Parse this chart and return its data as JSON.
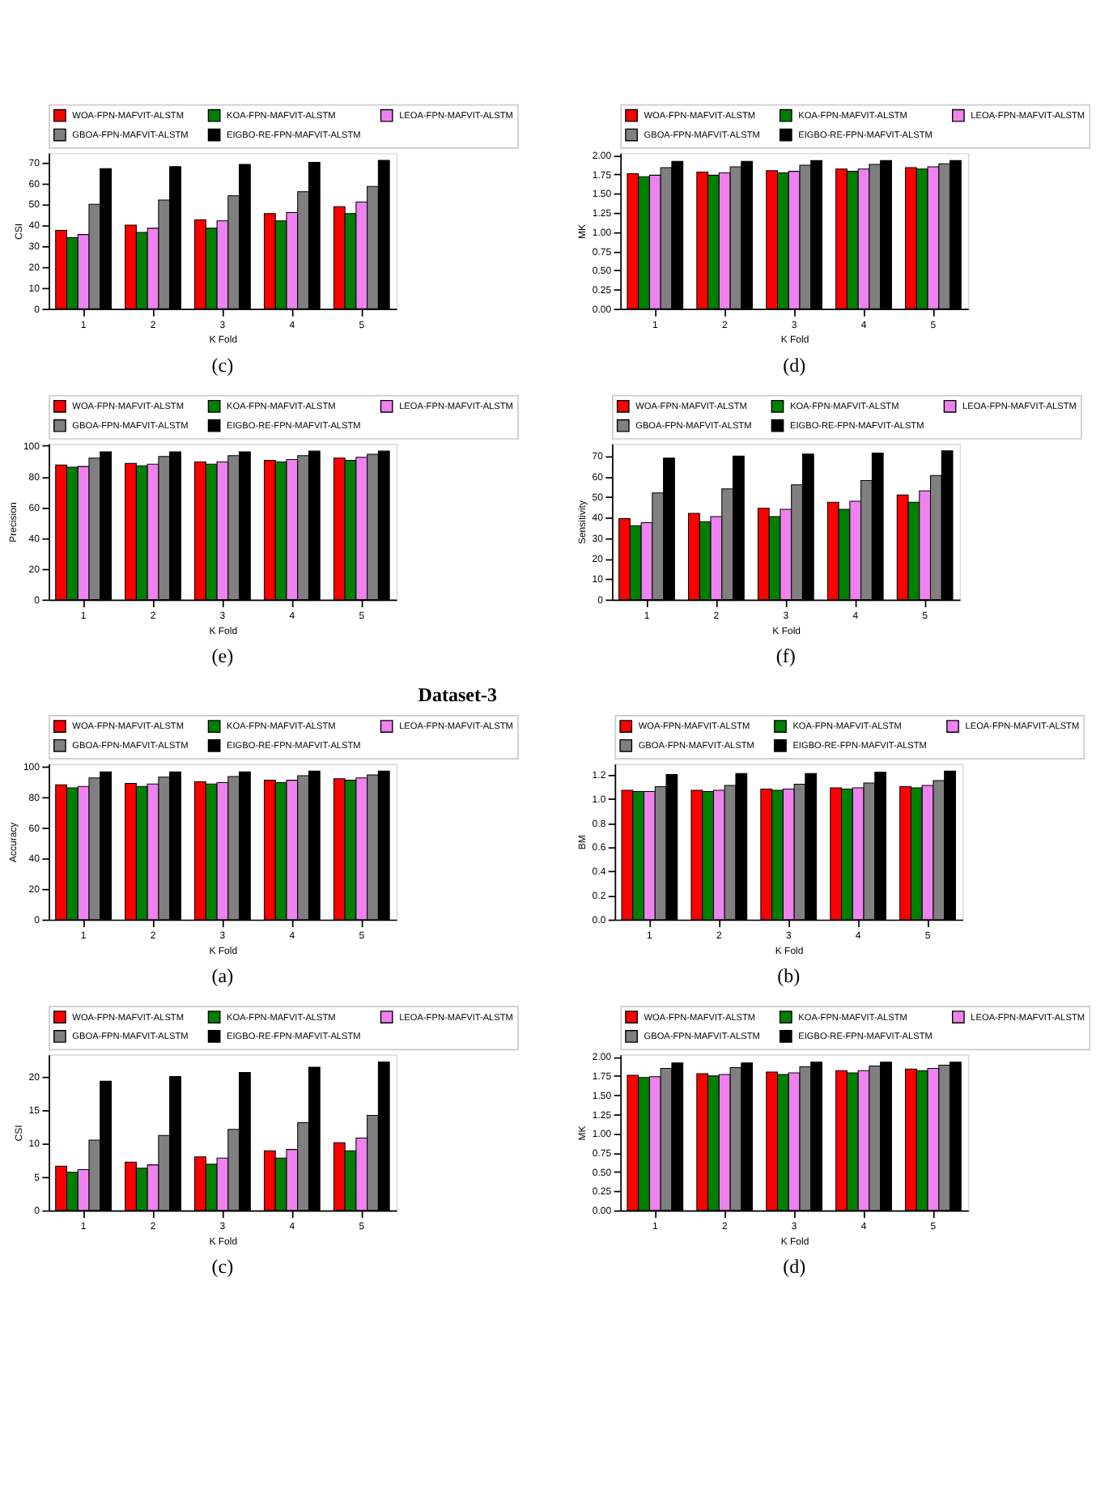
{
  "chart_data": [
    {
      "type": "bar",
      "ylabel": "CSI",
      "xlabel": "K Fold",
      "categories": [
        "1",
        "2",
        "3",
        "4",
        "5"
      ],
      "ylim": [
        0,
        74.5
      ],
      "yticks": [
        0,
        10,
        20,
        30,
        40,
        50,
        60,
        70
      ],
      "grid": false,
      "legend": "top",
      "annotations": [
        "(c)"
      ],
      "series": [
        {
          "name": "WOA-FPN-MAFVIT-ALSTM",
          "color": "#ff0000",
          "values": [
            37.5,
            40,
            42.5,
            45.5,
            48.8
          ]
        },
        {
          "name": "KOA-FPN-MAFVIT-ALSTM",
          "color": "#008000",
          "values": [
            34,
            36.5,
            38.5,
            42,
            45.5
          ]
        },
        {
          "name": "LEOA-FPN-MAFVIT-ALSTM",
          "color": "#ee82ee",
          "values": [
            35.5,
            38.5,
            42,
            46,
            51
          ]
        },
        {
          "name": "GBOA-FPN-MAFVIT-ALSTM",
          "color": "#808080",
          "values": [
            50,
            52,
            54,
            56,
            58.5
          ]
        },
        {
          "name": "EIGBO-RE-FPN-MAFVIT-ALSTM",
          "color": "#000000",
          "values": [
            67,
            68,
            69,
            70,
            71
          ]
        }
      ]
    },
    {
      "type": "bar",
      "ylabel": "MK",
      "xlabel": "K Fold",
      "categories": [
        "1",
        "2",
        "3",
        "4",
        "5"
      ],
      "ylim": [
        0,
        2.03
      ],
      "yticks": [
        {
          "value": 0,
          "label": "0.00"
        },
        {
          "value": 0.25,
          "label": "0.25"
        },
        {
          "value": 0.5,
          "label": "0.50"
        },
        {
          "value": 0.75,
          "label": "0.75"
        },
        {
          "value": 1,
          "label": "1.00"
        },
        {
          "value": 1.25,
          "label": "1.25"
        },
        {
          "value": 1.5,
          "label": "1.50"
        },
        {
          "value": 1.75,
          "label": "1.75"
        },
        {
          "value": 2,
          "label": "2.00"
        }
      ],
      "grid": false,
      "legend": "top",
      "annotations": [
        "(d)"
      ],
      "series": [
        {
          "name": "WOA-FPN-MAFVIT-ALSTM",
          "color": "#ff0000",
          "values": [
            1.76,
            1.78,
            1.8,
            1.82,
            1.84
          ]
        },
        {
          "name": "KOA-FPN-MAFVIT-ALSTM",
          "color": "#008000",
          "values": [
            1.72,
            1.74,
            1.77,
            1.79,
            1.82
          ]
        },
        {
          "name": "LEOA-FPN-MAFVIT-ALSTM",
          "color": "#ee82ee",
          "values": [
            1.74,
            1.77,
            1.79,
            1.82,
            1.85
          ]
        },
        {
          "name": "GBOA-FPN-MAFVIT-ALSTM",
          "color": "#808080",
          "values": [
            1.84,
            1.85,
            1.87,
            1.88,
            1.89
          ]
        },
        {
          "name": "EIGBO-RE-FPN-MAFVIT-ALSTM",
          "color": "#000000",
          "values": [
            1.92,
            1.92,
            1.93,
            1.93,
            1.93
          ]
        }
      ]
    },
    {
      "type": "bar",
      "ylabel": "Precision",
      "xlabel": "K Fold",
      "categories": [
        "1",
        "2",
        "3",
        "4",
        "5"
      ],
      "ylim": [
        0,
        101.3
      ],
      "yticks": [
        0,
        20,
        40,
        60,
        80,
        100
      ],
      "grid": false,
      "legend": "top",
      "annotations": [
        "(e)"
      ],
      "series": [
        {
          "name": "WOA-FPN-MAFVIT-ALSTM",
          "color": "#ff0000",
          "values": [
            87.5,
            88.5,
            89.5,
            90.5,
            92
          ]
        },
        {
          "name": "KOA-FPN-MAFVIT-ALSTM",
          "color": "#008000",
          "values": [
            86,
            87,
            88,
            89.5,
            90.5
          ]
        },
        {
          "name": "LEOA-FPN-MAFVIT-ALSTM",
          "color": "#ee82ee",
          "values": [
            86.5,
            88,
            89.5,
            91,
            92.5
          ]
        },
        {
          "name": "GBOA-FPN-MAFVIT-ALSTM",
          "color": "#808080",
          "values": [
            92,
            93,
            93.5,
            93.5,
            94.5
          ]
        },
        {
          "name": "EIGBO-RE-FPN-MAFVIT-ALSTM",
          "color": "#000000",
          "values": [
            96,
            96,
            96,
            96.5,
            96.5
          ]
        }
      ]
    },
    {
      "type": "bar",
      "ylabel": "Sensitivity",
      "xlabel": "K Fold",
      "categories": [
        "1",
        "2",
        "3",
        "4",
        "5"
      ],
      "ylim": [
        0,
        76
      ],
      "yticks": [
        0,
        10,
        20,
        30,
        40,
        50,
        60,
        70
      ],
      "grid": false,
      "legend": "top",
      "annotations": [
        "(f)"
      ],
      "series": [
        {
          "name": "WOA-FPN-MAFVIT-ALSTM",
          "color": "#ff0000",
          "values": [
            39.5,
            42,
            44.5,
            47.5,
            51
          ]
        },
        {
          "name": "KOA-FPN-MAFVIT-ALSTM",
          "color": "#008000",
          "values": [
            36,
            38,
            40.5,
            44,
            47.5
          ]
        },
        {
          "name": "LEOA-FPN-MAFVIT-ALSTM",
          "color": "#ee82ee",
          "values": [
            37.5,
            40.5,
            44,
            48,
            53
          ]
        },
        {
          "name": "GBOA-FPN-MAFVIT-ALSTM",
          "color": "#808080",
          "values": [
            52,
            54,
            56,
            58,
            60.5
          ]
        },
        {
          "name": "EIGBO-RE-FPN-MAFVIT-ALSTM",
          "color": "#000000",
          "values": [
            69,
            70,
            71,
            71.5,
            72.5
          ]
        }
      ]
    },
    {
      "type": "bar",
      "ylabel": "Accuracy",
      "xlabel": "K Fold",
      "categories": [
        "1",
        "2",
        "3",
        "4",
        "5"
      ],
      "ylim": [
        0,
        101.8
      ],
      "yticks": [
        0,
        20,
        40,
        60,
        80,
        100
      ],
      "grid": false,
      "legend": "top",
      "annotations": [
        "Dataset-3",
        "(a)"
      ],
      "series": [
        {
          "name": "WOA-FPN-MAFVIT-ALSTM",
          "color": "#ff0000",
          "values": [
            88,
            89,
            90,
            91,
            92
          ]
        },
        {
          "name": "KOA-FPN-MAFVIT-ALSTM",
          "color": "#008000",
          "values": [
            86,
            87,
            88.5,
            89.5,
            91
          ]
        },
        {
          "name": "LEOA-FPN-MAFVIT-ALSTM",
          "color": "#ee82ee",
          "values": [
            87,
            88.5,
            89.5,
            91,
            92.5
          ]
        },
        {
          "name": "GBOA-FPN-MAFVIT-ALSTM",
          "color": "#808080",
          "values": [
            92.5,
            93,
            93.5,
            94,
            94.5
          ]
        },
        {
          "name": "EIGBO-RE-FPN-MAFVIT-ALSTM",
          "color": "#000000",
          "values": [
            96.5,
            96.5,
            96.5,
            97,
            97
          ]
        }
      ]
    },
    {
      "type": "bar",
      "ylabel": "BM",
      "xlabel": "K Fold",
      "categories": [
        "1",
        "2",
        "3",
        "4",
        "5"
      ],
      "ylim": [
        0,
        1.29
      ],
      "yticks": [
        {
          "value": 0,
          "label": "0.0"
        },
        {
          "value": 0.2,
          "label": "0.2"
        },
        {
          "value": 0.4,
          "label": "0.4"
        },
        {
          "value": 0.6,
          "label": "0.6"
        },
        {
          "value": 0.8,
          "label": "0.8"
        },
        {
          "value": 1,
          "label": "1.0"
        },
        {
          "value": 1.2,
          "label": "1.2"
        }
      ],
      "grid": false,
      "legend": "top",
      "annotations": [
        "(b)"
      ],
      "series": [
        {
          "name": "WOA-FPN-MAFVIT-ALSTM",
          "color": "#ff0000",
          "values": [
            1.07,
            1.07,
            1.08,
            1.09,
            1.1
          ]
        },
        {
          "name": "KOA-FPN-MAFVIT-ALSTM",
          "color": "#008000",
          "values": [
            1.06,
            1.06,
            1.07,
            1.08,
            1.09
          ]
        },
        {
          "name": "LEOA-FPN-MAFVIT-ALSTM",
          "color": "#ee82ee",
          "values": [
            1.06,
            1.07,
            1.08,
            1.09,
            1.11
          ]
        },
        {
          "name": "GBOA-FPN-MAFVIT-ALSTM",
          "color": "#808080",
          "values": [
            1.1,
            1.11,
            1.12,
            1.13,
            1.15
          ]
        },
        {
          "name": "EIGBO-RE-FPN-MAFVIT-ALSTM",
          "color": "#000000",
          "values": [
            1.2,
            1.21,
            1.21,
            1.22,
            1.23
          ]
        }
      ]
    },
    {
      "type": "bar",
      "ylabel": "CSI",
      "xlabel": "K Fold",
      "categories": [
        "1",
        "2",
        "3",
        "4",
        "5"
      ],
      "ylim": [
        0,
        23.3
      ],
      "yticks": [
        0,
        5,
        10,
        15,
        20
      ],
      "grid": false,
      "legend": "top",
      "annotations": [
        "(c)"
      ],
      "series": [
        {
          "name": "WOA-FPN-MAFVIT-ALSTM",
          "color": "#ff0000",
          "values": [
            6.6,
            7.2,
            8.0,
            8.9,
            10.1
          ]
        },
        {
          "name": "KOA-FPN-MAFVIT-ALSTM",
          "color": "#008000",
          "values": [
            5.7,
            6.3,
            6.9,
            7.8,
            8.9
          ]
        },
        {
          "name": "LEOA-FPN-MAFVIT-ALSTM",
          "color": "#ee82ee",
          "values": [
            6.1,
            6.8,
            7.8,
            9.1,
            10.8
          ]
        },
        {
          "name": "GBOA-FPN-MAFVIT-ALSTM",
          "color": "#808080",
          "values": [
            10.5,
            11.2,
            12.1,
            13.1,
            14.2
          ]
        },
        {
          "name": "EIGBO-RE-FPN-MAFVIT-ALSTM",
          "color": "#000000",
          "values": [
            19.3,
            20.0,
            20.6,
            21.4,
            22.2
          ]
        }
      ]
    },
    {
      "type": "bar",
      "ylabel": "MK",
      "xlabel": "K Fold",
      "categories": [
        "1",
        "2",
        "3",
        "4",
        "5"
      ],
      "ylim": [
        0,
        2.03
      ],
      "yticks": [
        {
          "value": 0,
          "label": "0.00"
        },
        {
          "value": 0.25,
          "label": "0.25"
        },
        {
          "value": 0.5,
          "label": "0.50"
        },
        {
          "value": 0.75,
          "label": "0.75"
        },
        {
          "value": 1,
          "label": "1.00"
        },
        {
          "value": 1.25,
          "label": "1.25"
        },
        {
          "value": 1.5,
          "label": "1.50"
        },
        {
          "value": 1.75,
          "label": "1.75"
        },
        {
          "value": 2,
          "label": "2.00"
        }
      ],
      "grid": false,
      "legend": "top",
      "annotations": [
        "(d)"
      ],
      "series": [
        {
          "name": "WOA-FPN-MAFVIT-ALSTM",
          "color": "#ff0000",
          "values": [
            1.76,
            1.78,
            1.8,
            1.82,
            1.84
          ]
        },
        {
          "name": "KOA-FPN-MAFVIT-ALSTM",
          "color": "#008000",
          "values": [
            1.73,
            1.75,
            1.77,
            1.79,
            1.82
          ]
        },
        {
          "name": "LEOA-FPN-MAFVIT-ALSTM",
          "color": "#ee82ee",
          "values": [
            1.74,
            1.77,
            1.79,
            1.82,
            1.85
          ]
        },
        {
          "name": "GBOA-FPN-MAFVIT-ALSTM",
          "color": "#808080",
          "values": [
            1.85,
            1.86,
            1.87,
            1.88,
            1.89
          ]
        },
        {
          "name": "EIGBO-RE-FPN-MAFVIT-ALSTM",
          "color": "#000000",
          "values": [
            1.92,
            1.92,
            1.93,
            1.93,
            1.93
          ]
        }
      ]
    }
  ]
}
